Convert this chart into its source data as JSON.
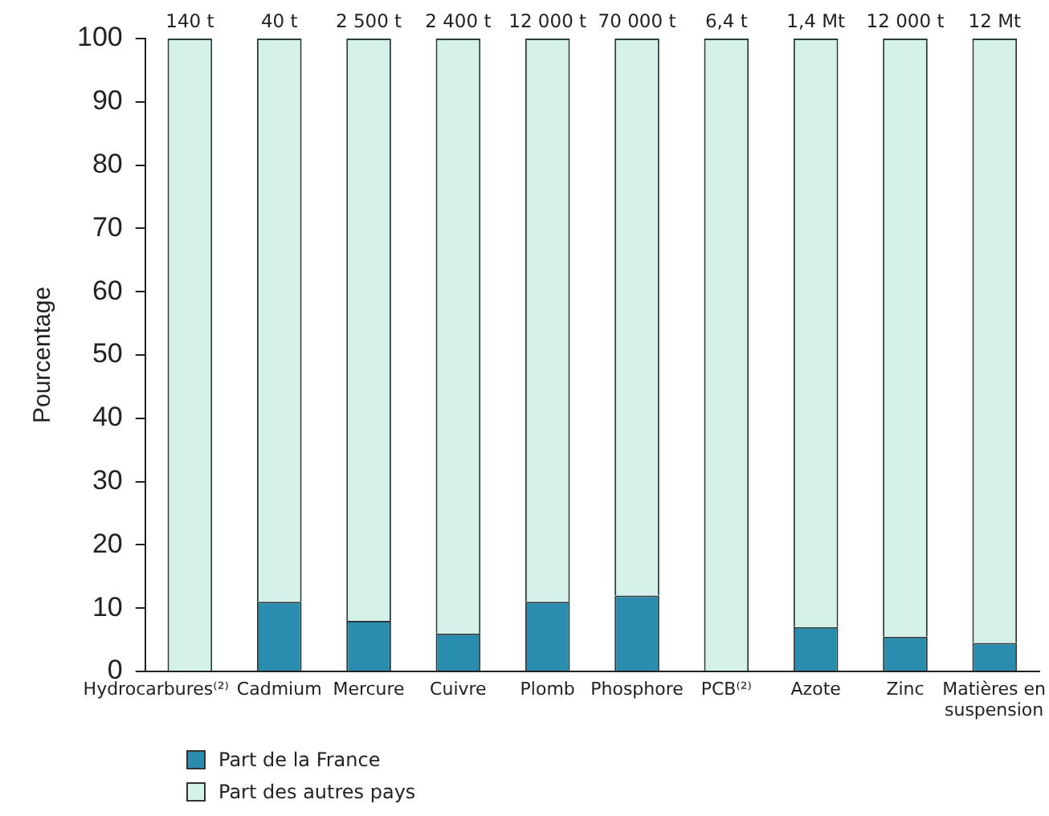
{
  "chart_data": {
    "type": "bar",
    "stacked": true,
    "ylabel": "Pourcentage",
    "categories": [
      "Hydrocarbures⁽²⁾",
      "Cadmium",
      "Mercure",
      "Cuivre",
      "Plomb",
      "Phosphore",
      "PCB⁽²⁾",
      "Azote",
      "Zinc",
      "Matières en suspension"
    ],
    "series": [
      {
        "name": "Part de la France",
        "color": "#2a8db0",
        "values": [
          0,
          11,
          8,
          6,
          11,
          12,
          0,
          7,
          5.5,
          4.5
        ]
      },
      {
        "name": "Part des autres pays",
        "color": "#d4f2ea",
        "values": [
          100,
          89,
          92,
          94,
          89,
          88,
          100,
          93,
          94.5,
          95.5
        ]
      }
    ],
    "annotations": [
      "140 t",
      "40 t",
      "2 500 t",
      "2 400 t",
      "12 000 t",
      "70 000 t",
      "6,4 t",
      "1,4 Mt",
      "12 000 t",
      "12 Mt"
    ],
    "ylim": [
      0,
      100
    ],
    "yticks": [
      0,
      10,
      20,
      30,
      40,
      50,
      60,
      70,
      80,
      90,
      100
    ],
    "grid": false,
    "legend": "bottom left"
  }
}
